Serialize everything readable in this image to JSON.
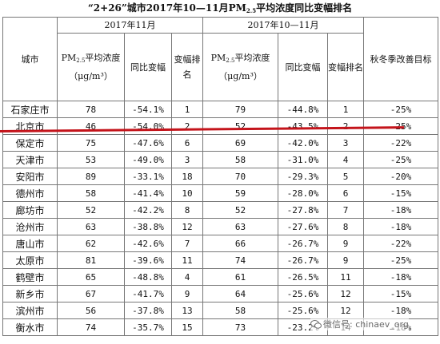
{
  "title": {
    "prefix": "“2+26”城市2017年10—11月PM",
    "subscript": "2.5",
    "suffix": "平均浓度同比变幅排名"
  },
  "table": {
    "group_headers": [
      "2017年11月",
      "2017年10—11月"
    ],
    "columns": {
      "city": "城市",
      "pm_prefix": "PM",
      "pm_sub": "2.5",
      "pm_rest": "平均浓度（μg/m³）",
      "change": "同比变幅",
      "rank": "变幅排名",
      "target": "秋冬季改善目标"
    },
    "rows": [
      [
        "石家庄市",
        "78",
        "-54.1%",
        "1",
        "79",
        "-44.8%",
        "1",
        "-25%"
      ],
      [
        "北京市",
        "46",
        "-54.0%",
        "2",
        "52",
        "-43.5%",
        "2",
        "-25%"
      ],
      [
        "保定市",
        "75",
        "-47.6%",
        "6",
        "69",
        "-42.0%",
        "3",
        "-22%"
      ],
      [
        "天津市",
        "53",
        "-49.0%",
        "3",
        "58",
        "-31.0%",
        "4",
        "-25%"
      ],
      [
        "安阳市",
        "89",
        "-33.1%",
        "18",
        "70",
        "-29.3%",
        "5",
        "-20%"
      ],
      [
        "德州市",
        "58",
        "-41.4%",
        "10",
        "59",
        "-28.0%",
        "6",
        "-15%"
      ],
      [
        "廊坊市",
        "52",
        "-42.2%",
        "8",
        "52",
        "-27.8%",
        "7",
        "-18%"
      ],
      [
        "沧州市",
        "63",
        "-38.8%",
        "12",
        "63",
        "-27.6%",
        "8",
        "-18%"
      ],
      [
        "唐山市",
        "62",
        "-42.6%",
        "7",
        "66",
        "-26.7%",
        "9",
        "-22%"
      ],
      [
        "太原市",
        "81",
        "-39.6%",
        "11",
        "74",
        "-26.7%",
        "9",
        "-25%"
      ],
      [
        "鹤壁市",
        "65",
        "-48.8%",
        "4",
        "61",
        "-26.5%",
        "11",
        "-18%"
      ],
      [
        "新乡市",
        "67",
        "-41.7%",
        "9",
        "64",
        "-25.6%",
        "12",
        "-15%"
      ],
      [
        "滨州市",
        "56",
        "-37.8%",
        "13",
        "58",
        "-25.6%",
        "12",
        "-18%"
      ],
      [
        "衡水市",
        "74",
        "-35.7%",
        "15",
        "73",
        "-23.2%",
        "14",
        "-18%"
      ]
    ]
  },
  "watermark": "微信号: chinaev_org",
  "icons": {
    "watermark_icon": "wechat-icon"
  },
  "colors": {
    "highlight_line": "#c4141b",
    "border": "#777777"
  }
}
